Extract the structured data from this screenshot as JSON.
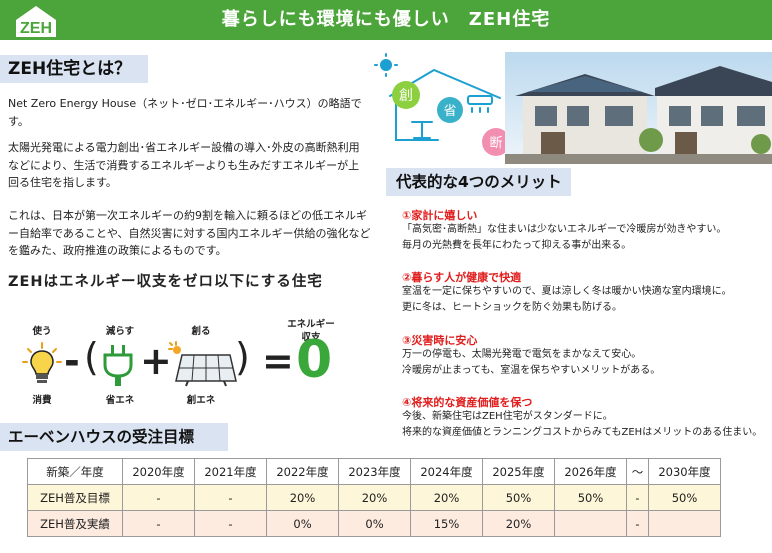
{
  "banner": {
    "logo_text": "ZEH",
    "title": "暮らしにも環境にも優しい　ZEH住宅"
  },
  "what": {
    "heading": "ZEH住宅とは？",
    "para1": "Net Zero Energy House（ネット･ゼロ･エネルギー･ハウス）の略語です。",
    "para2": "太陽光発電による電力創出･省エネルギー設備の導入･外皮の高断熱利用などにより、生活で消費するエネルギーよりも生みだすエネルギーが上回る住宅を指します。",
    "para3": "これは、日本が第一次エネルギーの約9割を輸入に頼るほどの低エネルギー自給率であることや、自然災害に対する国内エネルギー供給の強化などを鑑みた、政府推進の政策によるものです。"
  },
  "formula": {
    "slogan": "ZEHはエネルギー収支をゼロ以下にする住宅",
    "use": "使う",
    "reduce": "減らす",
    "create": "創る",
    "energy_balance": "エネルギー\n収支",
    "consume": "消費",
    "save_ene": "省エネ",
    "create_ene": "創エネ",
    "minus": "-",
    "lparen": "(",
    "plus": "+",
    "rparen": ")",
    "equals": "=",
    "zero": "0"
  },
  "illustration": {
    "badge_create": "創",
    "badge_save": "省",
    "badge_insulate": "断"
  },
  "merits": {
    "heading": "代表的な4つのメリット",
    "items": [
      {
        "title": "①家計に嬉しい",
        "lines": [
          "「高気密･高断熱」な住まいは少ないエネルギーで冷暖房が効きやすい。",
          "毎月の光熱費を長年にわたって抑える事が出来る。"
        ]
      },
      {
        "title": "②暮らす人が健康で快適",
        "lines": [
          "室温を一定に保ちやすいので、夏は涼しく冬は暖かい快適な室内環境に。",
          "更に冬は、ヒートショックを防ぐ効果も防げる。"
        ]
      },
      {
        "title": "③災害時に安心",
        "lines": [
          "万一の停電も、太陽光発電で電気をまかなえて安心。",
          "冷暖房が止まっても、室温を保ちやすいメリットがある。"
        ]
      },
      {
        "title": "④将来的な資産価値を保つ",
        "lines": [
          "今後、新築住宅はZEH住宅がスタンダードに。",
          "将来的な資産価値とランニングコストからみてもZEHはメリットのある住まい。"
        ]
      }
    ]
  },
  "goal": {
    "heading": "エーベンハウスの受注目標",
    "header": [
      "新築／年度",
      "2020年度",
      "2021年度",
      "2022年度",
      "2023年度",
      "2024年度",
      "2025年度",
      "2026年度",
      "〜",
      "2030年度"
    ],
    "rows": [
      [
        "ZEH普及目標",
        "-",
        "-",
        "20%",
        "20%",
        "20%",
        "50%",
        "50%",
        "-",
        "50%"
      ],
      [
        "ZEH普及実績",
        "-",
        "-",
        "0%",
        "0%",
        "15%",
        "20%",
        "",
        "-",
        ""
      ]
    ]
  },
  "colors": {
    "green": "#4ca53a",
    "accent_red": "#e11d1d",
    "heading_bg": "#d9e3f1",
    "zero_green": "#3aa73a",
    "row1": "#fdf6d8",
    "row2": "#fdebe0"
  }
}
